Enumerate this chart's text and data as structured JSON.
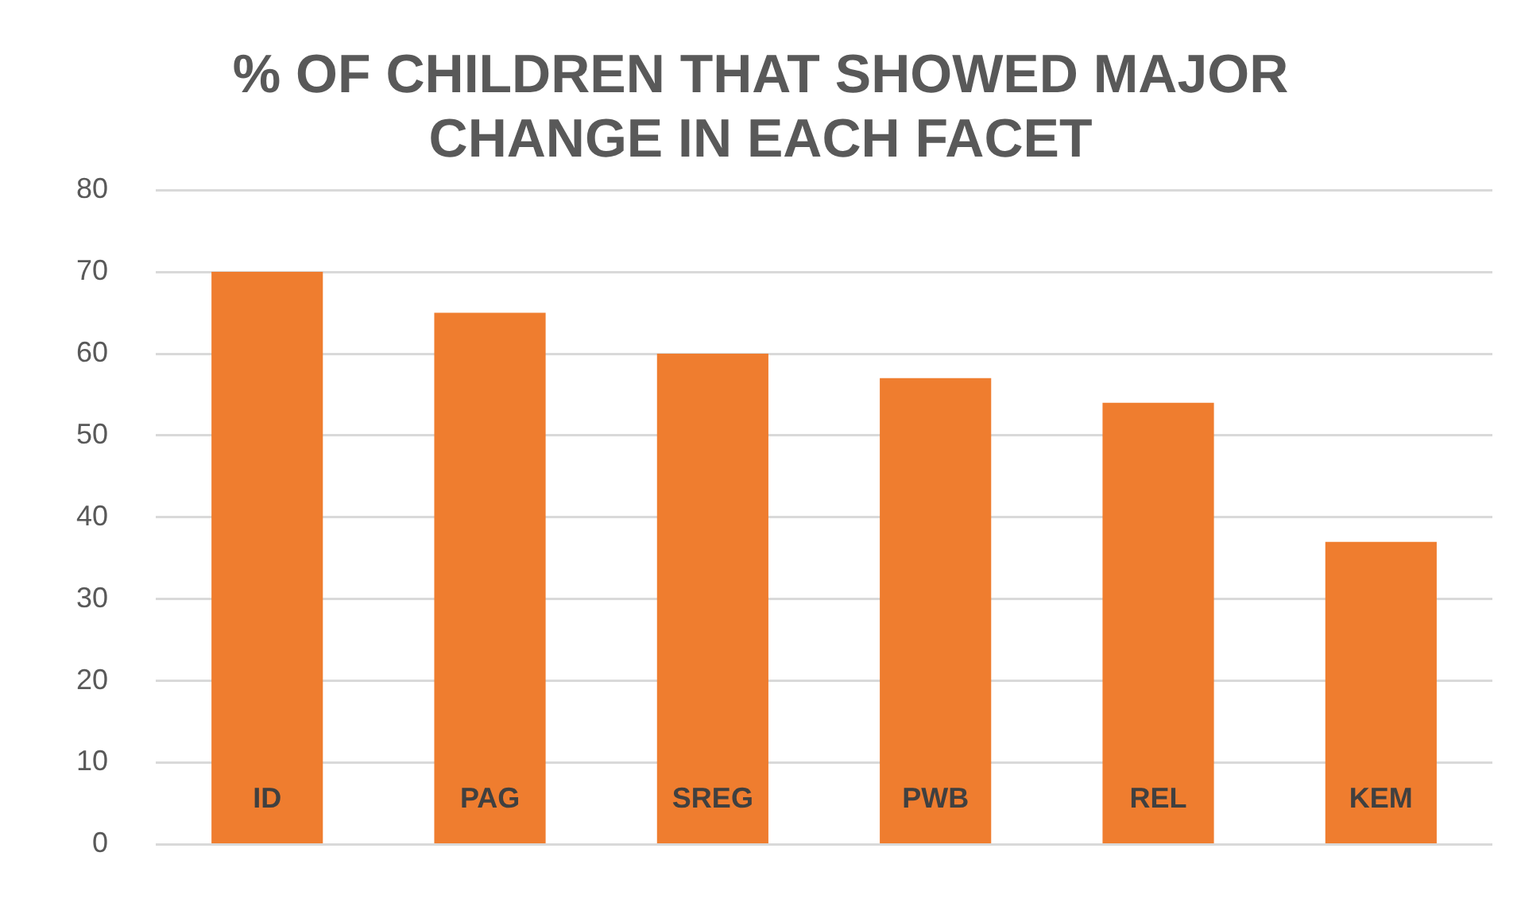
{
  "chart_data": {
    "type": "bar",
    "title": "% OF CHILDREN THAT SHOWED MAJOR CHANGE IN EACH FACET",
    "categories": [
      "ID",
      "PAG",
      "SREG",
      "PWB",
      "REL",
      "KEM"
    ],
    "values": [
      70,
      65,
      60,
      57,
      54,
      37
    ],
    "color": "#ef7d2f",
    "ylim": [
      0,
      80
    ],
    "yticks": [
      0,
      10,
      20,
      30,
      40,
      50,
      60,
      70,
      80
    ],
    "grid": "y"
  }
}
